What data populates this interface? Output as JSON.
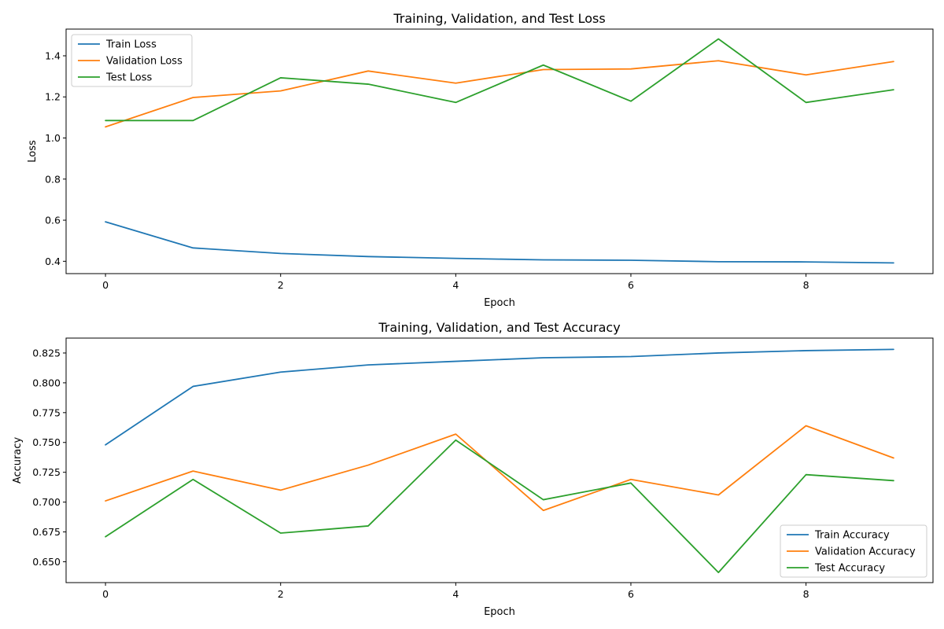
{
  "chart_data": [
    {
      "type": "line",
      "title": "Training, Validation, and Test Loss",
      "xlabel": "Epoch",
      "ylabel": "Loss",
      "x": [
        0,
        1,
        2,
        3,
        4,
        5,
        6,
        7,
        8,
        9
      ],
      "xlim": [
        -0.45,
        9.45
      ],
      "ylim": [
        0.34,
        1.53
      ],
      "xticks": [
        0,
        2,
        4,
        6,
        8
      ],
      "yticks": [
        0.4,
        0.6,
        0.8,
        1.0,
        1.2,
        1.4
      ],
      "ytick_labels": [
        "0.4",
        "0.6",
        "0.8",
        "1.0",
        "1.2",
        "1.4"
      ],
      "legend_position": "upper-left",
      "grid": false,
      "series": [
        {
          "name": "Train Loss",
          "color": "#1f77b4",
          "values": [
            0.592,
            0.465,
            0.438,
            0.423,
            0.414,
            0.407,
            0.405,
            0.398,
            0.397,
            0.392
          ]
        },
        {
          "name": "Validation Loss",
          "color": "#ff7f0e",
          "values": [
            1.054,
            1.197,
            1.229,
            1.326,
            1.267,
            1.333,
            1.336,
            1.376,
            1.307,
            1.372
          ]
        },
        {
          "name": "Test Loss",
          "color": "#2ca02c",
          "values": [
            1.085,
            1.085,
            1.293,
            1.262,
            1.173,
            1.355,
            1.179,
            1.482,
            1.173,
            1.235
          ]
        }
      ]
    },
    {
      "type": "line",
      "title": "Training, Validation, and Test Accuracy",
      "xlabel": "Epoch",
      "ylabel": "Accuracy",
      "x": [
        0,
        1,
        2,
        3,
        4,
        5,
        6,
        7,
        8,
        9
      ],
      "xlim": [
        -0.45,
        9.45
      ],
      "ylim": [
        0.6325,
        0.8375
      ],
      "xticks": [
        0,
        2,
        4,
        6,
        8
      ],
      "yticks": [
        0.65,
        0.675,
        0.7,
        0.725,
        0.75,
        0.775,
        0.8,
        0.825
      ],
      "ytick_labels": [
        "0.650",
        "0.675",
        "0.700",
        "0.725",
        "0.750",
        "0.775",
        "0.800",
        "0.825"
      ],
      "legend_position": "lower-right",
      "grid": false,
      "series": [
        {
          "name": "Train Accuracy",
          "color": "#1f77b4",
          "values": [
            0.748,
            0.797,
            0.809,
            0.815,
            0.818,
            0.821,
            0.822,
            0.825,
            0.827,
            0.828
          ]
        },
        {
          "name": "Validation Accuracy",
          "color": "#ff7f0e",
          "values": [
            0.701,
            0.726,
            0.71,
            0.731,
            0.757,
            0.693,
            0.719,
            0.706,
            0.764,
            0.737
          ]
        },
        {
          "name": "Test Accuracy",
          "color": "#2ca02c",
          "values": [
            0.671,
            0.719,
            0.674,
            0.68,
            0.752,
            0.702,
            0.716,
            0.641,
            0.723,
            0.718
          ]
        }
      ]
    }
  ]
}
